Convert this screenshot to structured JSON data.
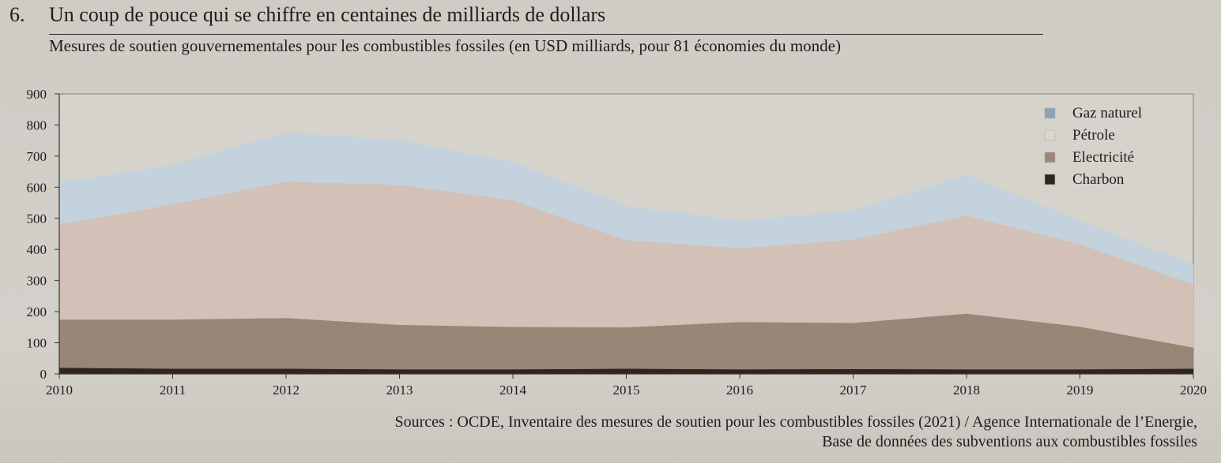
{
  "figure": {
    "number": "6.",
    "title": "Un coup de pouce qui se chiffre en centaines de milliards de dollars",
    "subtitle": "Mesures de soutien gouvernementales pour les combustibles fossiles (en USD milliards, pour 81 économies du monde)",
    "sources_line1": "Sources : OCDE, Inventaire des mesures de soutien pour les combustibles fossiles (2021) / Agence Internationale de l’Energie,",
    "sources_line2": "Base de données des subventions aux combustibles fossiles"
  },
  "chart_data": {
    "type": "area",
    "stacked": true,
    "x": [
      2010,
      2011,
      2012,
      2013,
      2014,
      2015,
      2016,
      2017,
      2018,
      2019,
      2020
    ],
    "series": [
      {
        "name": "Charbon",
        "color": "#2e2521",
        "swatch": "#2e2521",
        "values": [
          20,
          17,
          17,
          15,
          15,
          17,
          15,
          16,
          15,
          15,
          17
        ]
      },
      {
        "name": "Electricité",
        "color": "#9a8677",
        "swatch": "#9a8677",
        "values": [
          155,
          158,
          163,
          143,
          136,
          133,
          152,
          148,
          179,
          137,
          68
        ]
      },
      {
        "name": "Pétrole",
        "color": "#d3c1b8",
        "swatch": "#dcd6d0",
        "values": [
          305,
          370,
          438,
          450,
          407,
          280,
          237,
          268,
          315,
          265,
          203
        ]
      },
      {
        "name": "Gaz naturel",
        "color": "#c3d2dc",
        "swatch": "#8aa2b4",
        "values": [
          135,
          125,
          157,
          142,
          122,
          108,
          88,
          92,
          130,
          75,
          62
        ]
      }
    ],
    "legend_order": [
      "Gaz naturel",
      "Pétrole",
      "Electricité",
      "Charbon"
    ],
    "legend_position": "top-right",
    "yticks": [
      0,
      100,
      200,
      300,
      400,
      500,
      600,
      700,
      800,
      900
    ],
    "ylim": [
      0,
      900
    ],
    "xlim": [
      2010,
      2020
    ],
    "grid": false,
    "plot_background": "#d6d3cd"
  }
}
